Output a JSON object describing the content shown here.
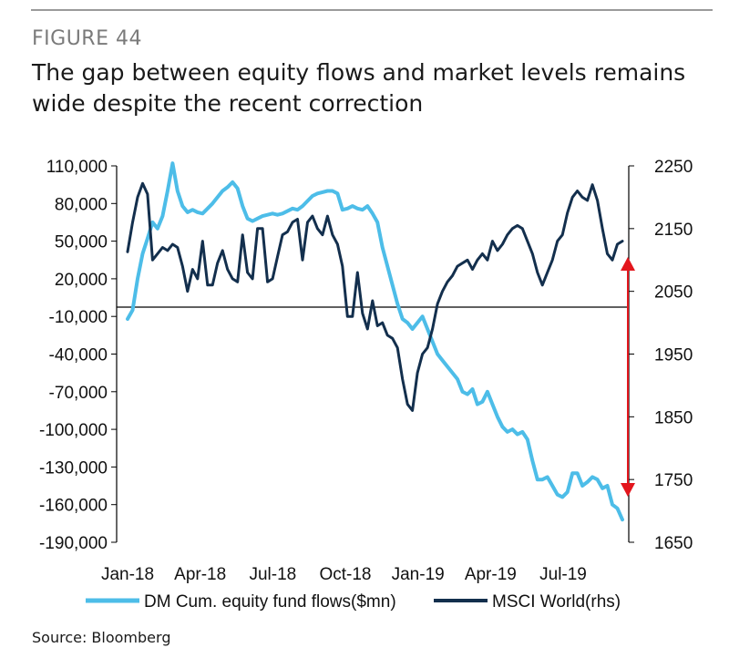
{
  "header": {
    "figure_label": "FIGURE 44",
    "title": "The gap between equity flows and market levels remains wide despite the recent correction"
  },
  "source": "Source: Bloomberg",
  "colors": {
    "flows": "#4dbde8",
    "msci": "#132f4d",
    "arrow": "#e3161d",
    "axis": "#000000",
    "rule": "#9a9a9a"
  },
  "chart_data": {
    "type": "line",
    "title": "The gap between equity flows and market levels remains wide despite the recent correction",
    "x_tick_labels": [
      "Jan-18",
      "Apr-18",
      "Jul-18",
      "Oct-18",
      "Jan-19",
      "Apr-19",
      "Jul-19"
    ],
    "y_left": {
      "label": "",
      "ticks": [
        "110,000",
        "80,000",
        "50,000",
        "20,000",
        "-10,000",
        "-40,000",
        "-70,000",
        "-100,000",
        "-130,000",
        "-160,000",
        "-190,000"
      ],
      "tick_values": [
        110000,
        80000,
        50000,
        20000,
        -10000,
        -40000,
        -70000,
        -100000,
        -130000,
        -160000,
        -190000
      ],
      "range": [
        -190000,
        110000
      ]
    },
    "y_right": {
      "label": "",
      "ticks": [
        "2250",
        "2150",
        "2050",
        "1950",
        "1850",
        "1750",
        "1650"
      ],
      "tick_values": [
        2250,
        2150,
        2050,
        1950,
        1850,
        1750,
        1650
      ],
      "range": [
        1650,
        2250
      ]
    },
    "series": [
      {
        "name": "DM Cum. equity fund flows($mn)",
        "axis": "left",
        "x_start": 0,
        "x_step": 1,
        "values": [
          -12000,
          -5000,
          20000,
          40000,
          52000,
          65000,
          60000,
          70000,
          90000,
          112000,
          90000,
          78000,
          73000,
          75000,
          73000,
          72000,
          76000,
          80000,
          85000,
          90000,
          93000,
          97000,
          92000,
          78000,
          68000,
          66000,
          68000,
          70000,
          71000,
          72000,
          71000,
          72000,
          74000,
          76000,
          75000,
          78000,
          82000,
          86000,
          88000,
          89000,
          90000,
          90000,
          88000,
          75000,
          76000,
          78000,
          76000,
          75000,
          78000,
          72000,
          65000,
          45000,
          30000,
          15000,
          0,
          -12000,
          -15000,
          -20000,
          -15000,
          -10000,
          -20000,
          -30000,
          -40000,
          -45000,
          -50000,
          -55000,
          -60000,
          -70000,
          -72000,
          -68000,
          -80000,
          -78000,
          -70000,
          -80000,
          -90000,
          -98000,
          -102000,
          -100000,
          -104000,
          -102000,
          -108000,
          -125000,
          -140000,
          -140000,
          -138000,
          -145000,
          -152000,
          -154000,
          -150000,
          -135000,
          -135000,
          -145000,
          -142000,
          -138000,
          -140000,
          -147000,
          -145000,
          -160000,
          -163000,
          -172000
        ]
      },
      {
        "name": "MSCI World(rhs)",
        "axis": "right",
        "x_start": 0,
        "x_step": 1,
        "values": [
          2113,
          2160,
          2200,
          2222,
          2205,
          2100,
          2110,
          2120,
          2115,
          2125,
          2120,
          2090,
          2050,
          2085,
          2070,
          2130,
          2060,
          2060,
          2095,
          2115,
          2085,
          2070,
          2065,
          2140,
          2080,
          2070,
          2150,
          2150,
          2065,
          2070,
          2105,
          2140,
          2145,
          2160,
          2165,
          2100,
          2160,
          2170,
          2150,
          2140,
          2170,
          2140,
          2125,
          2090,
          2010,
          2010,
          2080,
          2015,
          1990,
          2035,
          1995,
          2000,
          1980,
          1975,
          1960,
          1910,
          1870,
          1860,
          1920,
          1950,
          1960,
          1990,
          2030,
          2050,
          2065,
          2075,
          2090,
          2095,
          2100,
          2085,
          2100,
          2110,
          2100,
          2130,
          2115,
          2125,
          2140,
          2150,
          2155,
          2150,
          2130,
          2110,
          2080,
          2060,
          2080,
          2100,
          2130,
          2140,
          2175,
          2200,
          2210,
          2200,
          2195,
          2220,
          2195,
          2150,
          2110,
          2100,
          2125,
          2130
        ]
      }
    ],
    "legend": {
      "entries": [
        "DM Cum. equity fund flows($mn)",
        "MSCI World(rhs)"
      ],
      "placement": "bottom"
    },
    "annotations": [
      "double-headed arrow marking gap between series at latest date"
    ],
    "grid": false
  }
}
